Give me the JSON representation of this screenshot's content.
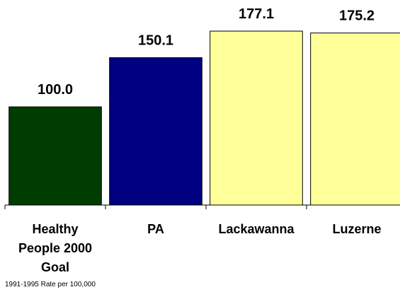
{
  "chart_data": {
    "type": "bar",
    "categories": [
      "Healthy People 2000 Goal",
      "PA",
      "Lackawanna",
      "Luzerne"
    ],
    "values": [
      100.0,
      150.1,
      177.1,
      175.2
    ],
    "value_labels": [
      "100.0",
      "150.1",
      "177.1",
      "175.2"
    ],
    "colors": [
      "#003d00",
      "#000080",
      "#ffff99",
      "#ffff99"
    ],
    "ylim": [
      0,
      180
    ],
    "note": "1991-1995 Rate per 100,000"
  }
}
